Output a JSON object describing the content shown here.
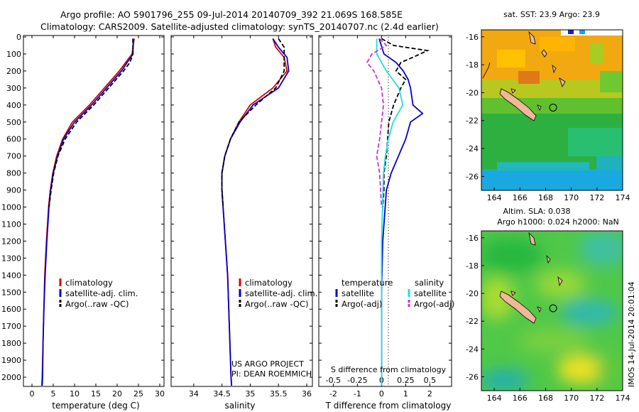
{
  "title_line1": "Argo profile: AO 5901796_255 09-Jul-2014 20140709_392 21.069S 168.585E",
  "title_line2": "Climatology: CARS2009. Satellite-adjusted climatology: synTS_20140707.nc (2.4d earlier)",
  "project_line1": "US ARGO PROJECT",
  "project_line2": "PI: DEAN ROEMMICH",
  "watermark": "IMOS 14-Jul-2014 20:01:04",
  "colors": {
    "climatology": "#dd0000",
    "satellite": "#0000cc",
    "argo": "#000000",
    "sat_salinity": "#22dddd",
    "argo_salinity": "#cc33cc",
    "land": "#f0b898"
  },
  "chart_data": [
    {
      "type": "line",
      "title": "",
      "xlabel": "temperature (deg C)",
      "ylabel": "",
      "xlim": [
        -2,
        31
      ],
      "ylim": [
        2050,
        0
      ],
      "x_ticks": [
        "0",
        "5",
        "10",
        "15",
        "20",
        "25",
        "30"
      ],
      "y_ticks": [
        "0",
        "100",
        "200",
        "300",
        "400",
        "500",
        "600",
        "700",
        "800",
        "900",
        "1000",
        "1100",
        "1200",
        "1300",
        "1400",
        "1500",
        "1600",
        "1700",
        "1800",
        "1900",
        "2000"
      ],
      "legend": [
        "climatology",
        "satellite-adj. clim.",
        "Argo(..raw -QC)"
      ],
      "series": [
        {
          "name": "climatology",
          "style": "solid",
          "depth": [
            10,
            100,
            200,
            300,
            400,
            500,
            600,
            700,
            800,
            900,
            1000,
            1200,
            1400,
            1600,
            1800,
            2000,
            2050
          ],
          "values": [
            24,
            23.5,
            20.5,
            17,
            13.5,
            9.5,
            7.2,
            5.8,
            4.9,
            4.3,
            3.9,
            3.4,
            3.0,
            2.8,
            2.6,
            2.4,
            2.3
          ]
        },
        {
          "name": "satellite-adj. clim.",
          "style": "solid",
          "depth": [
            10,
            100,
            200,
            300,
            400,
            500,
            600,
            700,
            800,
            900,
            1000,
            1200,
            1400,
            1600,
            1800,
            2000,
            2050
          ],
          "values": [
            23.8,
            23.7,
            21,
            17.5,
            14,
            10,
            7.4,
            6,
            5,
            4.4,
            4,
            3.5,
            3.1,
            2.8,
            2.6,
            2.5,
            2.4
          ]
        },
        {
          "name": "Argo(..raw -QC)",
          "style": "dash",
          "depth": [
            10,
            100,
            150,
            200,
            300,
            400,
            500,
            600,
            700,
            800,
            900,
            1000
          ],
          "values": [
            23.7,
            23.7,
            23,
            21.5,
            18,
            14.5,
            10.5,
            7.8,
            6.1,
            5.1,
            4.5,
            4.0
          ]
        }
      ]
    },
    {
      "type": "line",
      "title": "",
      "xlabel": "salinity",
      "ylabel": "",
      "xlim": [
        33.6,
        36.1
      ],
      "ylim": [
        2050,
        0
      ],
      "x_ticks": [
        "34",
        "34.5",
        "35",
        "35.5",
        "36"
      ],
      "legend": [
        "climatology",
        "satellite-adj. clim.",
        "Argo(..raw -QC)"
      ],
      "series": [
        {
          "name": "climatology",
          "style": "solid",
          "depth": [
            10,
            60,
            120,
            200,
            300,
            400,
            500,
            600,
            700,
            800,
            900,
            1000,
            1200,
            1400,
            1600,
            1800,
            2000,
            2050
          ],
          "values": [
            35.4,
            35.45,
            35.6,
            35.65,
            35.4,
            35.0,
            34.8,
            34.65,
            34.55,
            34.5,
            34.5,
            34.52,
            34.56,
            34.6,
            34.62,
            34.64,
            34.66,
            34.67
          ]
        },
        {
          "name": "satellite-adj. clim.",
          "style": "solid",
          "depth": [
            10,
            60,
            120,
            200,
            300,
            400,
            500,
            600,
            700,
            800,
            900,
            1000,
            1200,
            1400,
            1600,
            1800,
            2000,
            2050
          ],
          "values": [
            35.4,
            35.5,
            35.65,
            35.68,
            35.5,
            35.05,
            34.82,
            34.65,
            34.55,
            34.5,
            34.5,
            34.52,
            34.56,
            34.6,
            34.62,
            34.64,
            34.66,
            34.67
          ]
        },
        {
          "name": "Argo(..raw -QC)",
          "style": "dash",
          "depth": [
            10,
            60,
            120,
            200,
            300,
            400,
            500,
            600,
            700,
            800,
            900,
            1000
          ],
          "values": [
            35.5,
            35.6,
            35.6,
            35.6,
            35.45,
            35.1,
            34.8,
            34.65,
            34.55,
            34.5,
            34.5,
            34.52
          ]
        }
      ]
    },
    {
      "type": "line",
      "title": "",
      "xlabel": "T difference from climatology",
      "xlabel_top": "S difference from climatology",
      "xlim": [
        -2.6,
        2.9
      ],
      "ylim": [
        2050,
        0
      ],
      "x_ticks": [
        "-2",
        "-1",
        "0",
        "1",
        "2"
      ],
      "x_ticks_top": [
        "-0.5",
        "-0.25",
        "0",
        "0.25",
        "0.5"
      ],
      "legend_headers": [
        "temperature",
        "salinity"
      ],
      "legend": [
        "satellite",
        "Argo(-adj)",
        "satellite",
        "Argo(-adj)"
      ],
      "series": [
        {
          "name": "T satellite",
          "style": "solid",
          "depth": [
            10,
            100,
            150,
            200,
            250,
            300,
            400,
            450,
            500,
            600,
            700,
            800,
            900,
            1000,
            1200,
            1500,
            2000,
            2050
          ],
          "values": [
            -0.1,
            0.1,
            0.6,
            0.9,
            1.1,
            1.2,
            1.3,
            1.7,
            1.2,
            1.0,
            0.7,
            0.4,
            0.2,
            0.15,
            0.05,
            0.0,
            0.0,
            0.0
          ]
        },
        {
          "name": "T Argo(-adj)",
          "style": "dash",
          "depth": [
            10,
            50,
            80,
            120,
            150,
            200,
            250,
            300,
            400,
            500,
            600,
            700,
            800,
            900,
            1000
          ],
          "values": [
            0.0,
            0.5,
            1.9,
            1.3,
            0.8,
            0.6,
            1.0,
            0.8,
            0.5,
            0.3,
            0.25,
            0.2,
            0.1,
            0.1,
            0.05
          ]
        },
        {
          "name": "S satellite",
          "style": "solid",
          "depth": [
            10,
            100,
            200,
            300,
            400,
            500,
            600,
            700,
            800,
            1000,
            1200,
            1500,
            2000,
            2050
          ],
          "values": [
            -0.05,
            -0.05,
            0.05,
            0.18,
            0.22,
            0.12,
            0.07,
            0.04,
            0.02,
            0.01,
            0.0,
            0.0,
            0.0,
            0.0
          ]
        },
        {
          "name": "S Argo(-adj)",
          "style": "dash",
          "depth": [
            10,
            50,
            100,
            150,
            200,
            300,
            400,
            500,
            600,
            700,
            800,
            900,
            1000
          ],
          "values": [
            -0.02,
            0.05,
            -0.1,
            -0.15,
            -0.08,
            0.0,
            0.02,
            0.0,
            -0.02,
            -0.05,
            -0.02,
            -0.01,
            0.0
          ]
        }
      ]
    },
    {
      "type": "heatmap",
      "title": "sat. SST: 23.9 Argo: 23.9",
      "x_ticks": [
        "164",
        "166",
        "168",
        "170",
        "172",
        "174"
      ],
      "y_ticks": [
        "-16",
        "-18",
        "-20",
        "-22",
        "-24",
        "-26"
      ],
      "xlim": [
        163,
        174
      ],
      "ylim": [
        -27,
        -15.5
      ],
      "argo_position": {
        "lon": 168.585,
        "lat": -21.069
      }
    },
    {
      "type": "heatmap",
      "title_line1": "Altim. SLA: 0.038",
      "title_line2": "Argo h1000: 0.024 h2000: NaN",
      "x_ticks": [
        "164",
        "166",
        "168",
        "170",
        "172",
        "174"
      ],
      "y_ticks": [
        "-16",
        "-18",
        "-20",
        "-22",
        "-24",
        "-26"
      ],
      "xlim": [
        163,
        174
      ],
      "ylim": [
        -27,
        -15.5
      ],
      "argo_position": {
        "lon": 168.585,
        "lat": -21.069
      }
    }
  ]
}
